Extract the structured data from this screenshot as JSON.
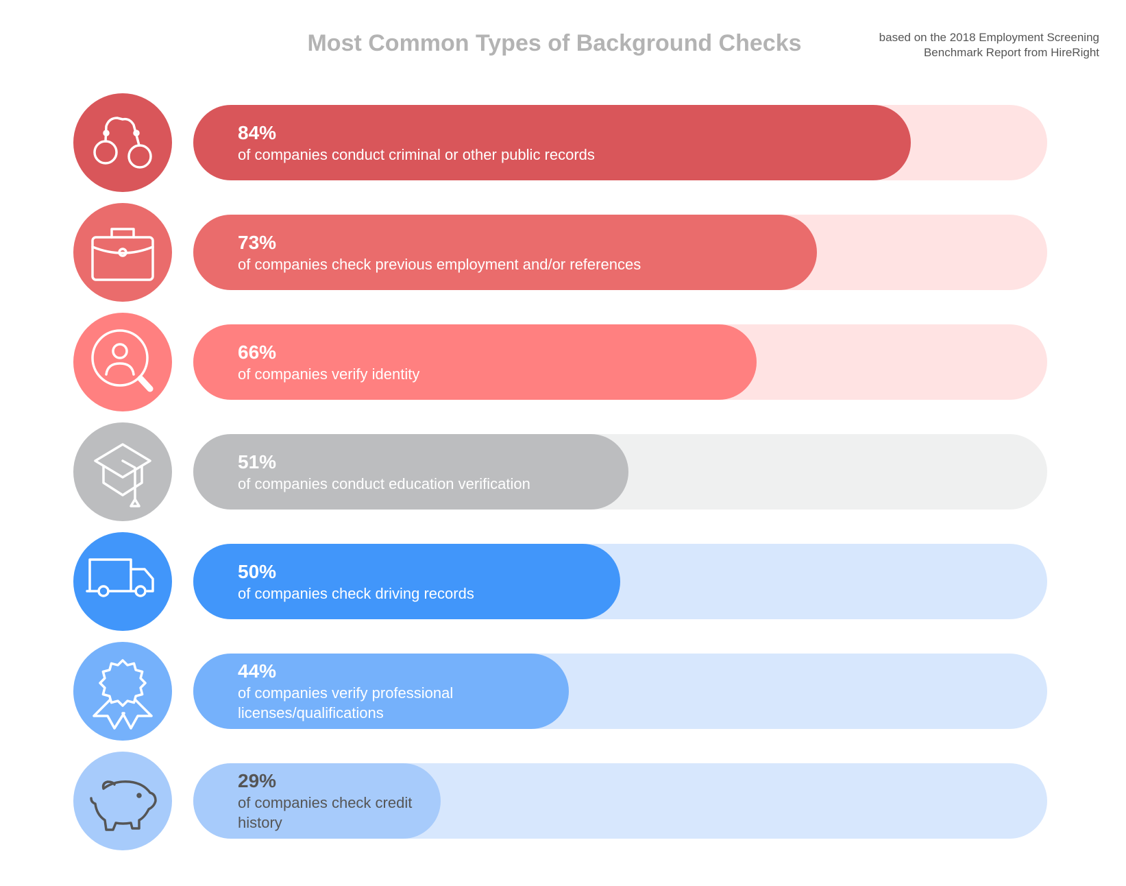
{
  "chart_data": {
    "type": "bar",
    "title": "Most Common Types of Background Checks",
    "subtitle": "based on the 2018 Employment Screening Benchmark Report from HireRight",
    "categories": [
      "of companies conduct criminal or other public records",
      "of companies check previous employment and/or references",
      "of companies verify identity",
      "of companies conduct education verification",
      "of companies check driving records",
      "of companies verify professional licenses/qualifications",
      "of companies check credit history"
    ],
    "values": [
      84,
      73,
      66,
      51,
      50,
      44,
      29
    ],
    "value_labels": [
      "84%",
      "73%",
      "66%",
      "51%",
      "50%",
      "44%",
      "29%"
    ],
    "colors": [
      "#d9565a",
      "#ea6c6c",
      "#ff8080",
      "#bcbdbf",
      "#4196fa",
      "#75b1fb",
      "#a7cbfb"
    ],
    "track_colors": [
      "#ffe3e3",
      "#ffe3e3",
      "#ffe3e3",
      "#eff0f0",
      "#d7e7fd",
      "#d7e7fd",
      "#d7e7fd"
    ],
    "label_colors": [
      "#ffffff",
      "#ffffff",
      "#ffffff",
      "#ffffff",
      "#ffffff",
      "#ffffff",
      "#555555"
    ],
    "xlim": [
      0,
      100
    ]
  }
}
